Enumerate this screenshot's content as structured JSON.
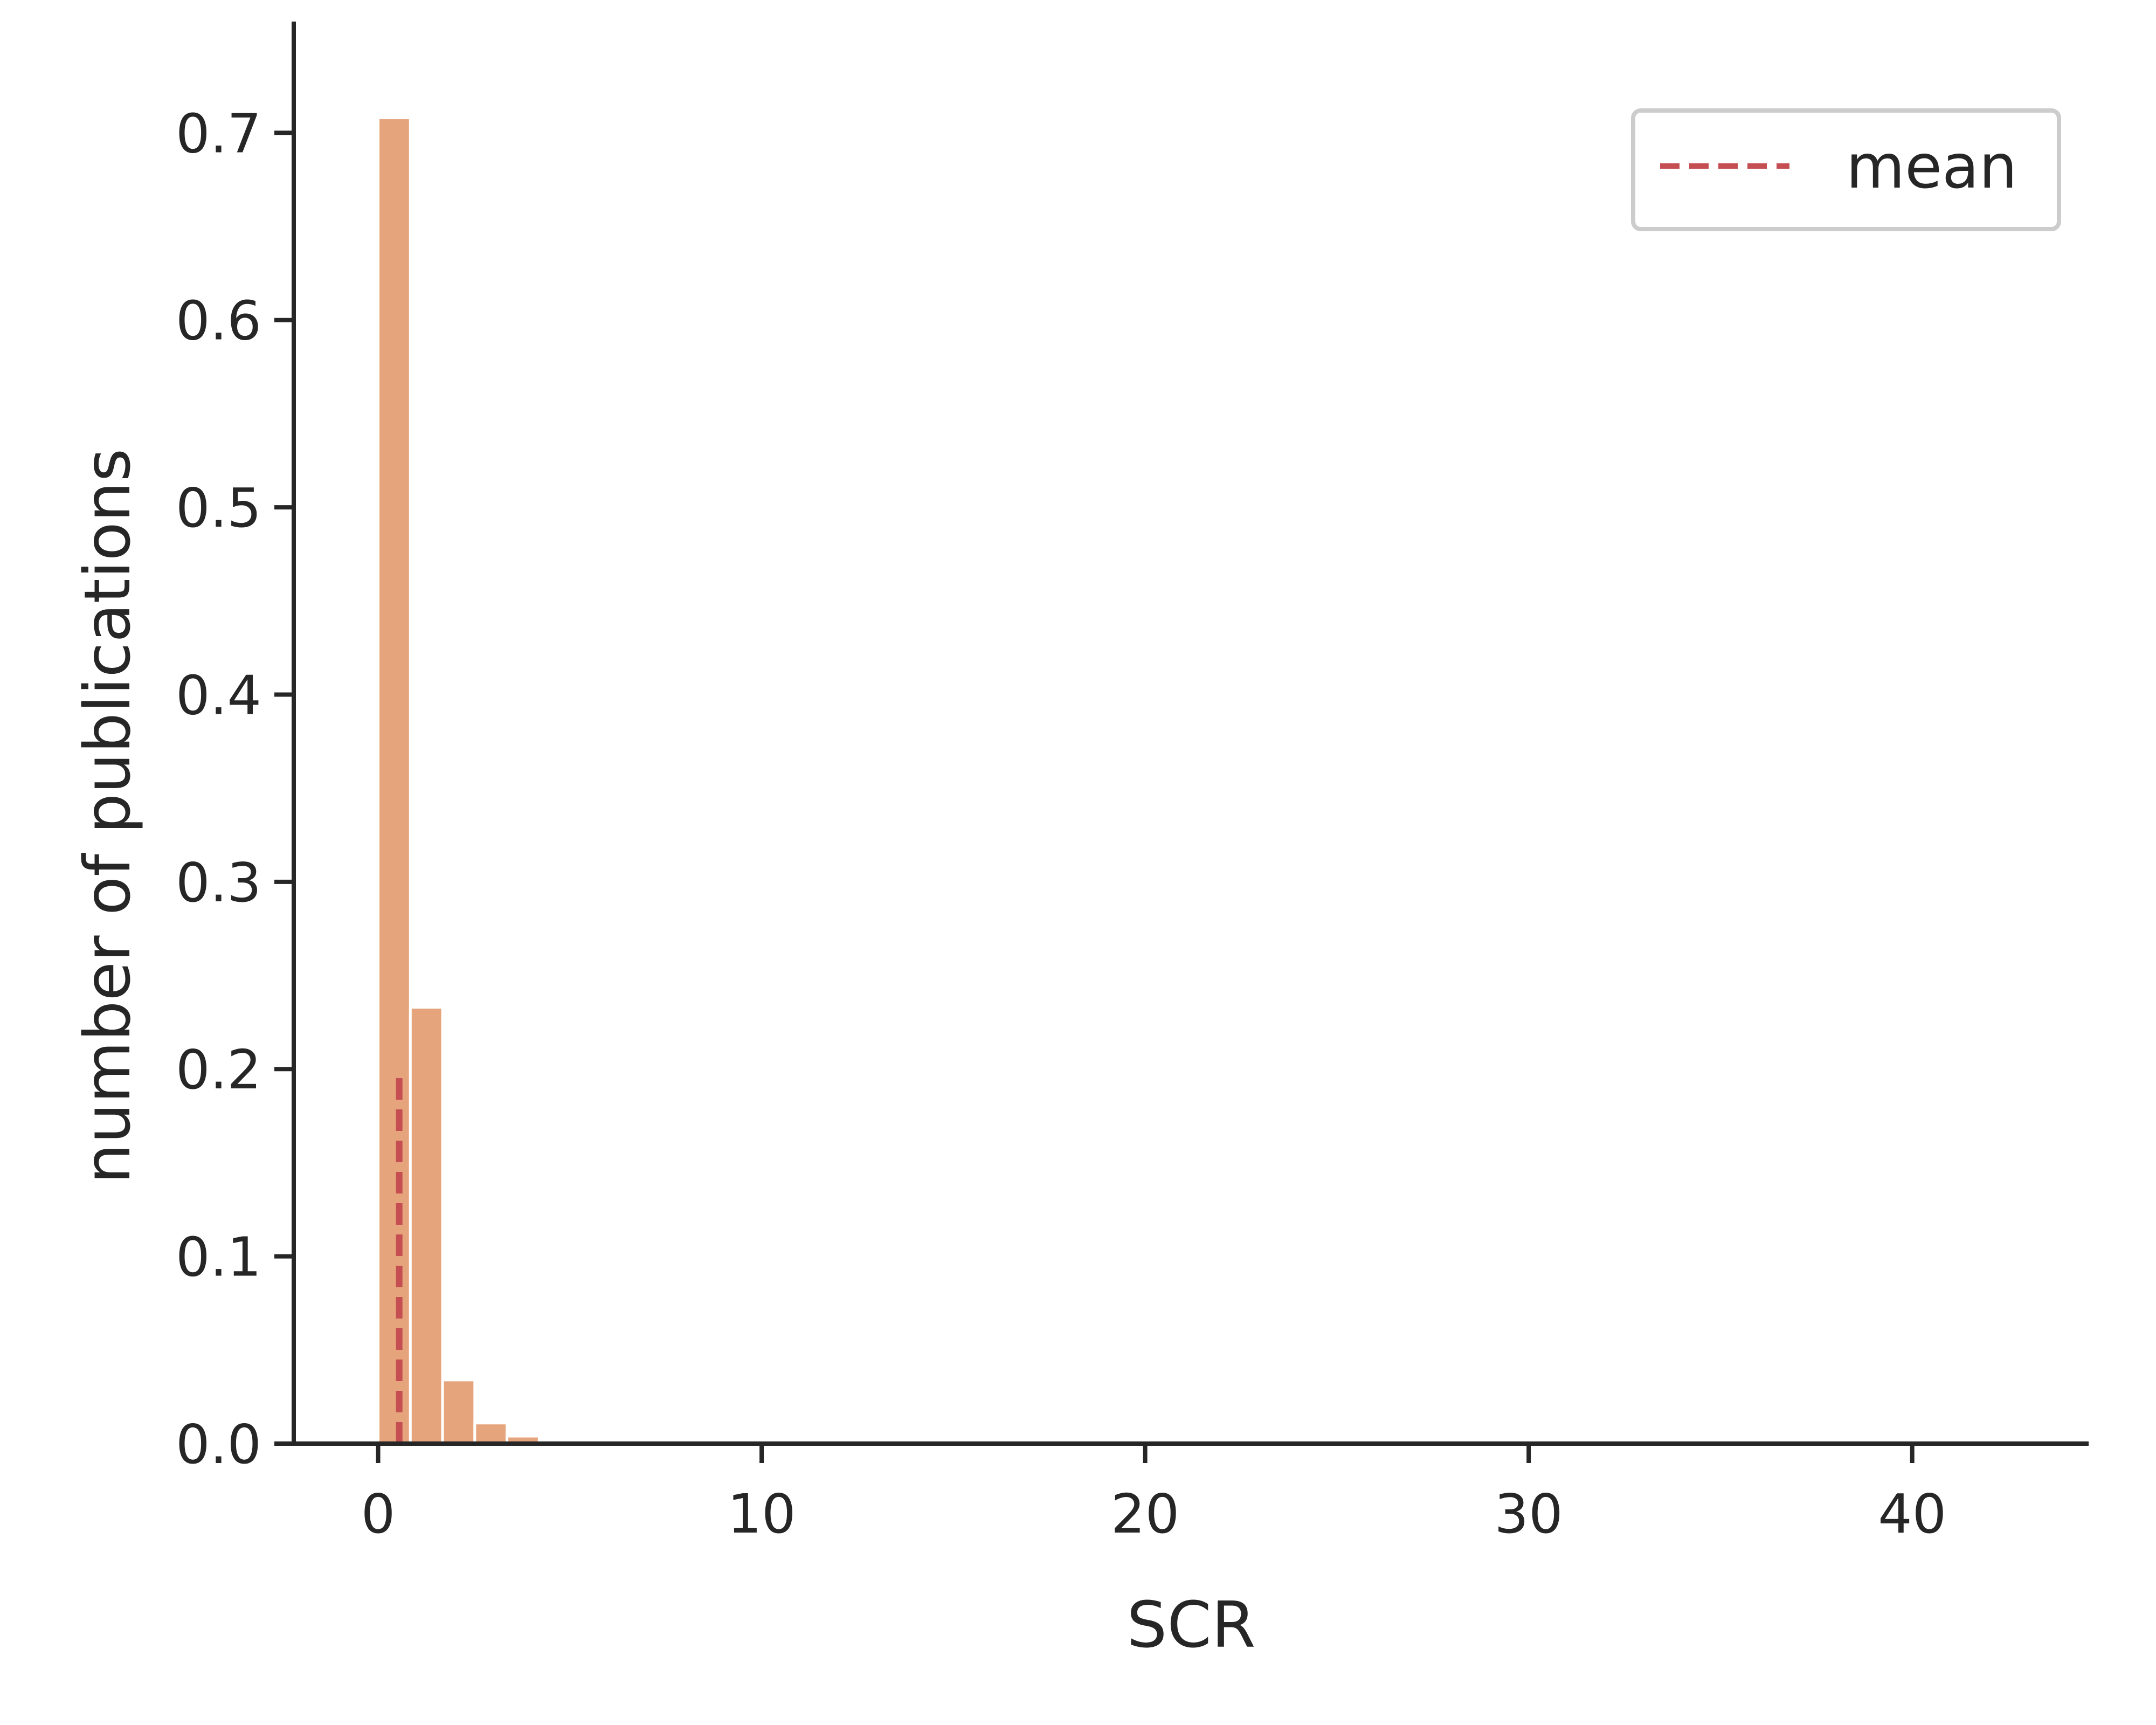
{
  "chart_data": {
    "type": "bar",
    "title": "",
    "xlabel": "SCR",
    "ylabel": "number of publications",
    "xlim": [
      -2.2,
      44.6
    ],
    "ylim": [
      0,
      0.745
    ],
    "bin_width": 0.84,
    "x_ticks": [
      0,
      10,
      20,
      30,
      40
    ],
    "y_ticks": [
      "0.0",
      "0.1",
      "0.2",
      "0.3",
      "0.4",
      "0.5",
      "0.6",
      "0.7"
    ],
    "bins": [
      {
        "start": 0.0,
        "value": 0.708
      },
      {
        "start": 0.84,
        "value": 0.233
      },
      {
        "start": 1.68,
        "value": 0.034
      },
      {
        "start": 2.52,
        "value": 0.011
      },
      {
        "start": 3.36,
        "value": 0.004
      }
    ],
    "mean_line": {
      "x": 0.55,
      "ymax": 0.2,
      "label": "mean",
      "color": "#c44e52"
    },
    "bar_color": "#e5a47c",
    "grid": false,
    "legend_position": "top-right"
  }
}
